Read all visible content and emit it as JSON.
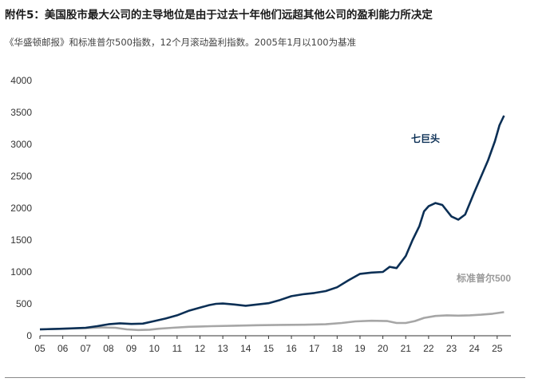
{
  "header": {
    "title": "附件5：美国股市最大公司的主导地位是由于过去十年他们远超其他公司的盈利能力所决定",
    "subtitle": "《华盛顿邮报》和标准普尔500指数，12个月滚动盈利指数。2005年1月以100为基准"
  },
  "chart_data": {
    "type": "line",
    "title": "",
    "xlabel": "",
    "ylabel": "",
    "x_tick_labels": [
      "05",
      "06",
      "07",
      "08",
      "09",
      "10",
      "11",
      "12",
      "13",
      "14",
      "15",
      "16",
      "17",
      "18",
      "19",
      "20",
      "21",
      "22",
      "23",
      "24",
      "25"
    ],
    "xlim": [
      2005.0,
      2025.6
    ],
    "ylim": [
      0,
      4000
    ],
    "y_ticks": [
      0,
      500,
      1000,
      1500,
      2000,
      2500,
      3000,
      3500,
      4000
    ],
    "grid": false,
    "legend": "inline labels",
    "series": [
      {
        "name": "七巨头",
        "color": "#0b2f55",
        "points": [
          [
            2005.0,
            100
          ],
          [
            2006.0,
            110
          ],
          [
            2007.0,
            125
          ],
          [
            2007.5,
            150
          ],
          [
            2008.0,
            180
          ],
          [
            2008.5,
            195
          ],
          [
            2009.0,
            185
          ],
          [
            2009.5,
            190
          ],
          [
            2010.0,
            230
          ],
          [
            2010.5,
            270
          ],
          [
            2011.0,
            320
          ],
          [
            2011.5,
            390
          ],
          [
            2012.0,
            440
          ],
          [
            2012.4,
            480
          ],
          [
            2012.7,
            500
          ],
          [
            2013.0,
            505
          ],
          [
            2013.5,
            490
          ],
          [
            2014.0,
            470
          ],
          [
            2014.5,
            490
          ],
          [
            2015.0,
            510
          ],
          [
            2015.5,
            560
          ],
          [
            2016.0,
            620
          ],
          [
            2016.5,
            650
          ],
          [
            2017.0,
            670
          ],
          [
            2017.5,
            700
          ],
          [
            2018.0,
            760
          ],
          [
            2018.5,
            870
          ],
          [
            2019.0,
            970
          ],
          [
            2019.5,
            990
          ],
          [
            2020.0,
            1000
          ],
          [
            2020.3,
            1080
          ],
          [
            2020.6,
            1060
          ],
          [
            2021.0,
            1250
          ],
          [
            2021.3,
            1500
          ],
          [
            2021.6,
            1720
          ],
          [
            2021.8,
            1950
          ],
          [
            2022.0,
            2030
          ],
          [
            2022.3,
            2080
          ],
          [
            2022.6,
            2050
          ],
          [
            2023.0,
            1870
          ],
          [
            2023.3,
            1820
          ],
          [
            2023.6,
            1900
          ],
          [
            2024.0,
            2250
          ],
          [
            2024.3,
            2500
          ],
          [
            2024.6,
            2750
          ],
          [
            2024.9,
            3050
          ],
          [
            2025.1,
            3300
          ],
          [
            2025.3,
            3450
          ]
        ]
      },
      {
        "name": "标准普尔500",
        "color": "#a6a6a6",
        "points": [
          [
            2005.0,
            100
          ],
          [
            2006.0,
            110
          ],
          [
            2007.0,
            120
          ],
          [
            2007.7,
            130
          ],
          [
            2008.3,
            125
          ],
          [
            2008.8,
            100
          ],
          [
            2009.3,
            90
          ],
          [
            2009.8,
            95
          ],
          [
            2010.2,
            110
          ],
          [
            2010.8,
            125
          ],
          [
            2011.5,
            140
          ],
          [
            2012.5,
            150
          ],
          [
            2013.5,
            158
          ],
          [
            2014.5,
            165
          ],
          [
            2015.5,
            170
          ],
          [
            2016.5,
            172
          ],
          [
            2017.5,
            180
          ],
          [
            2018.2,
            200
          ],
          [
            2018.8,
            225
          ],
          [
            2019.5,
            235
          ],
          [
            2020.2,
            230
          ],
          [
            2020.6,
            200
          ],
          [
            2021.0,
            200
          ],
          [
            2021.4,
            230
          ],
          [
            2021.8,
            280
          ],
          [
            2022.3,
            310
          ],
          [
            2022.8,
            320
          ],
          [
            2023.3,
            315
          ],
          [
            2023.8,
            320
          ],
          [
            2024.3,
            330
          ],
          [
            2024.8,
            345
          ],
          [
            2025.3,
            370
          ]
        ]
      }
    ]
  }
}
